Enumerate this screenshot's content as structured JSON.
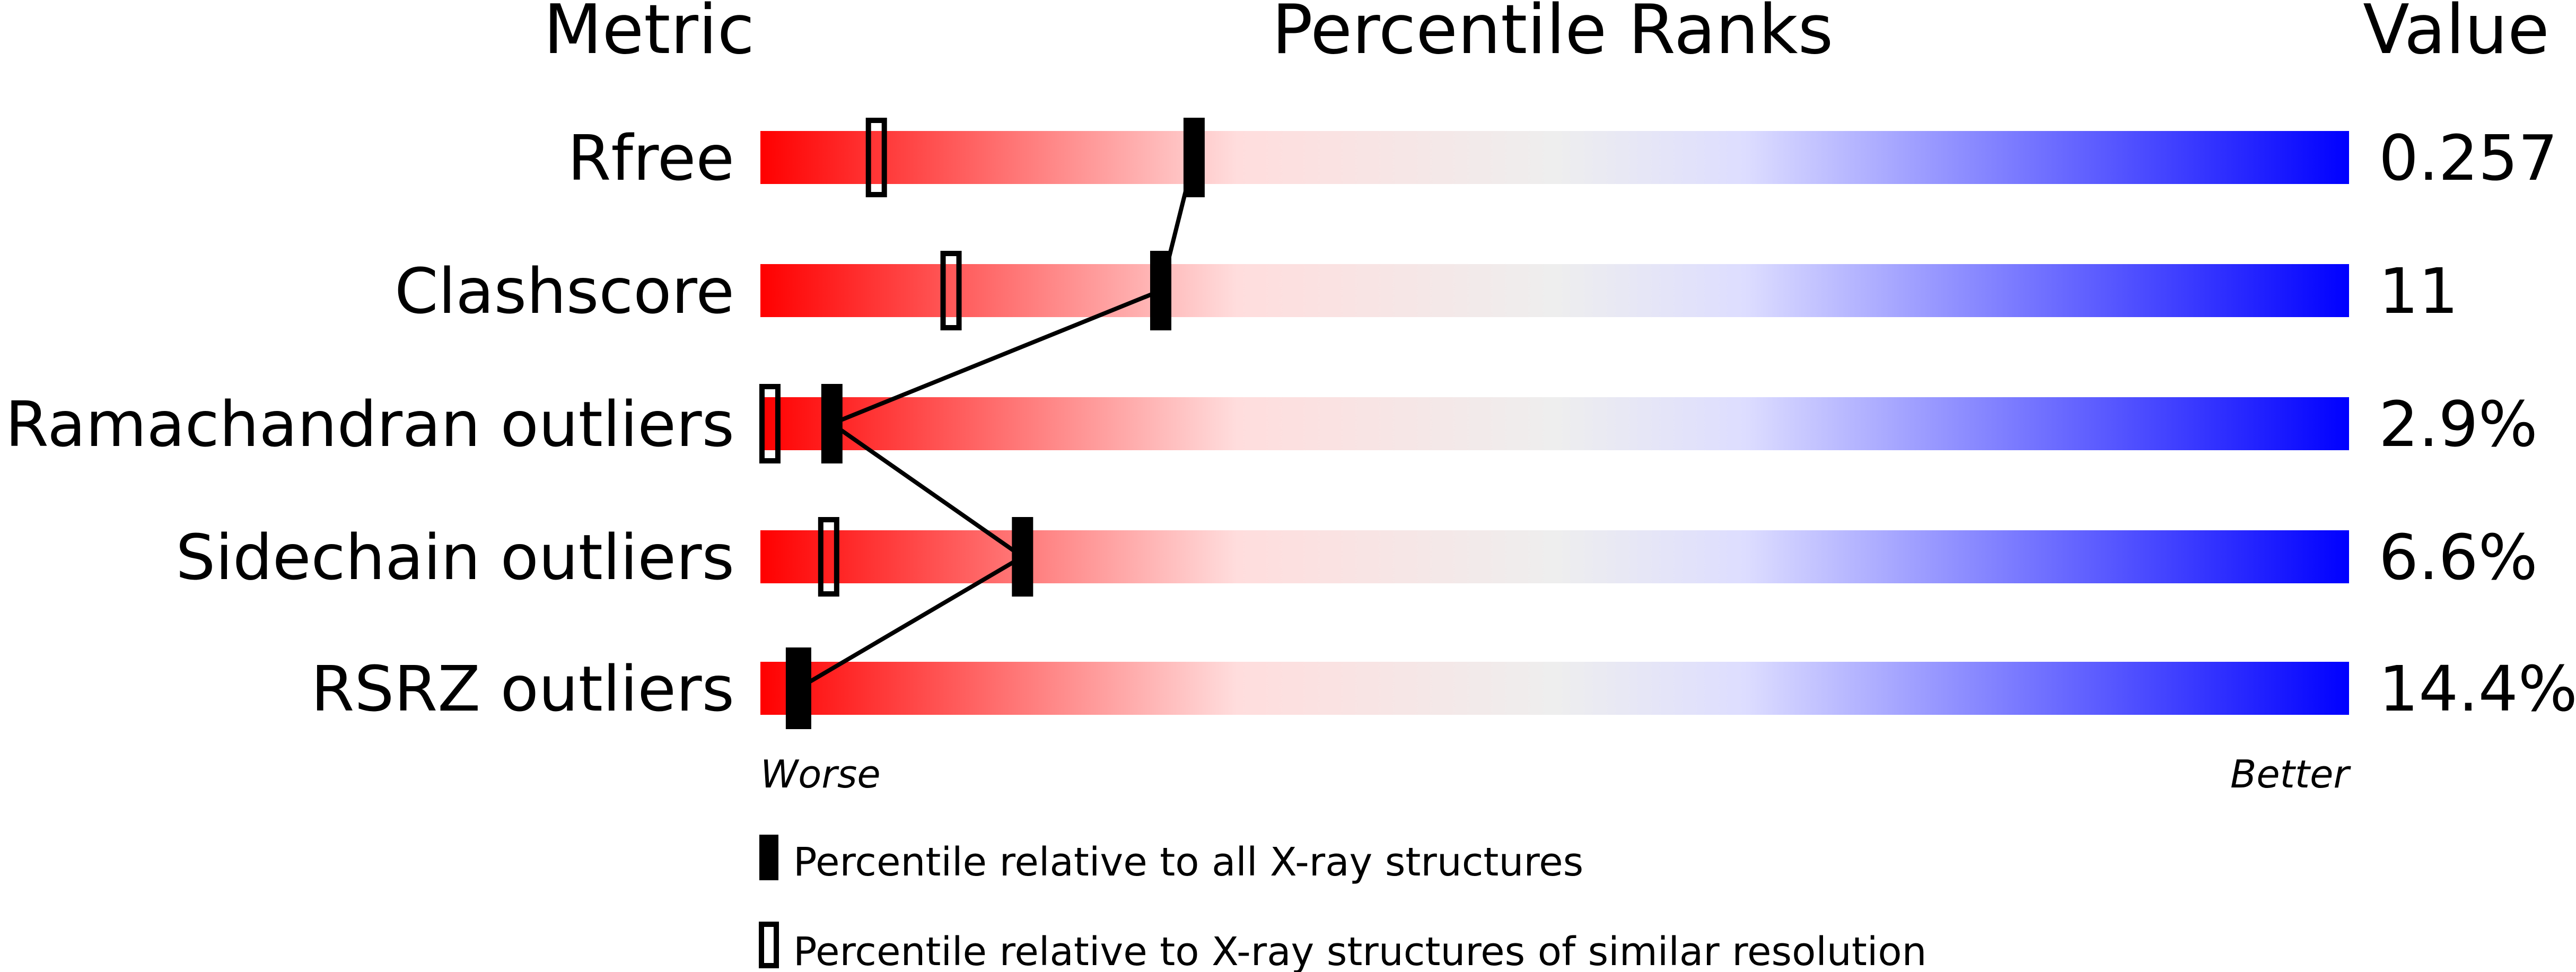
{
  "chart_data": {
    "type": "percentile-slider",
    "headers": {
      "metric": "Metric",
      "ranks": "Percentile Ranks",
      "value": "Value"
    },
    "xlim": [
      0,
      100
    ],
    "axis_labels": {
      "left": "Worse",
      "right": "Better"
    },
    "gradient_colors": [
      "#ff0000",
      "#ffdddd",
      "#eeeeee",
      "#ddddff",
      "#0000ff"
    ],
    "rows": [
      {
        "metric": "Rfree",
        "value": "0.257",
        "percentile_all": 27.3,
        "percentile_similar": 7.3
      },
      {
        "metric": "Clashscore",
        "value": "11",
        "percentile_all": 25.2,
        "percentile_similar": 12.0
      },
      {
        "metric": "Ramachandran outliers",
        "value": "2.9%",
        "percentile_all": 4.5,
        "percentile_similar": 0.6
      },
      {
        "metric": "Sidechain outliers",
        "value": "6.6%",
        "percentile_all": 16.5,
        "percentile_similar": 4.3
      },
      {
        "metric": "RSRZ outliers",
        "value": "14.4%",
        "percentile_all": 2.4,
        "percentile_similar": null
      }
    ],
    "legend": [
      {
        "marker": "filled",
        "label": "Percentile relative to all X-ray structures"
      },
      {
        "marker": "open",
        "label": "Percentile relative to X-ray structures of similar resolution"
      }
    ]
  }
}
